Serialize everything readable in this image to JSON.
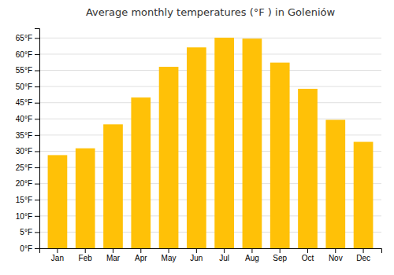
{
  "chart_data": {
    "type": "bar",
    "title": "Average monthly temperatures (°F ) in Goleniów",
    "categories": [
      "Jan",
      "Feb",
      "Mar",
      "Apr",
      "May",
      "Jun",
      "Jul",
      "Aug",
      "Sep",
      "Oct",
      "Nov",
      "Dec"
    ],
    "values": [
      28.8,
      30.9,
      38.3,
      46.6,
      56.1,
      62.1,
      65.1,
      64.8,
      57.4,
      49.3,
      39.7,
      32.9
    ],
    "color": "#FFC107",
    "ylim": [
      0,
      68
    ],
    "yticks": [
      {
        "value": 0,
        "label": "0°F"
      },
      {
        "value": 5,
        "label": "5°F"
      },
      {
        "value": 10,
        "label": "10°F"
      },
      {
        "value": 15,
        "label": "15°F"
      },
      {
        "value": 20,
        "label": "20°F"
      },
      {
        "value": 25,
        "label": "25°F"
      },
      {
        "value": 30,
        "label": "30°F"
      },
      {
        "value": 35,
        "label": "35°F"
      },
      {
        "value": 40,
        "label": "40°F"
      },
      {
        "value": 45,
        "label": "45°F"
      },
      {
        "value": 50,
        "label": "50°F"
      },
      {
        "value": 55,
        "label": "55°F"
      },
      {
        "value": 60,
        "label": "60°F"
      },
      {
        "value": 65,
        "label": "65°F"
      }
    ],
    "grid": true
  }
}
